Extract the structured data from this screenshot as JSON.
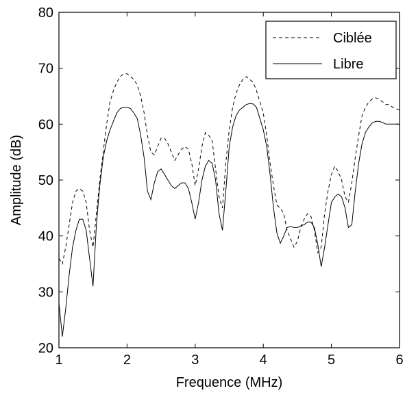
{
  "chart_data": {
    "type": "line",
    "title": "",
    "xlabel": "Frequence (MHz)",
    "ylabel": "Amplitude (dB)",
    "xlim": [
      1,
      6
    ],
    "ylim": [
      20,
      80
    ],
    "xticks": [
      1,
      2,
      3,
      4,
      5,
      6
    ],
    "yticks": [
      20,
      30,
      40,
      50,
      60,
      70,
      80
    ],
    "grid": false,
    "legend_position": "top-right",
    "series": [
      {
        "name": "Ciblée",
        "style": "dashed",
        "color": "#000000",
        "x": [
          1.0,
          1.05,
          1.1,
          1.15,
          1.2,
          1.25,
          1.3,
          1.35,
          1.4,
          1.45,
          1.5,
          1.55,
          1.6,
          1.65,
          1.7,
          1.75,
          1.8,
          1.85,
          1.9,
          1.95,
          2.0,
          2.05,
          2.1,
          2.15,
          2.2,
          2.25,
          2.3,
          2.35,
          2.4,
          2.45,
          2.5,
          2.55,
          2.6,
          2.65,
          2.7,
          2.75,
          2.8,
          2.85,
          2.9,
          2.95,
          3.0,
          3.05,
          3.1,
          3.15,
          3.2,
          3.25,
          3.3,
          3.35,
          3.4,
          3.45,
          3.5,
          3.55,
          3.6,
          3.65,
          3.7,
          3.75,
          3.8,
          3.85,
          3.9,
          3.95,
          4.0,
          4.05,
          4.1,
          4.15,
          4.2,
          4.25,
          4.3,
          4.35,
          4.4,
          4.45,
          4.5,
          4.55,
          4.6,
          4.65,
          4.7,
          4.75,
          4.8,
          4.85,
          4.9,
          4.95,
          5.0,
          5.05,
          5.1,
          5.15,
          5.2,
          5.25,
          5.3,
          5.35,
          5.4,
          5.45,
          5.5,
          5.55,
          5.6,
          5.65,
          5.7,
          5.75,
          5.8,
          5.85,
          5.9,
          5.95,
          6.0
        ],
        "y": [
          36.0,
          35.0,
          38.0,
          42.0,
          46.0,
          48.0,
          48.5,
          48.0,
          46.0,
          41.0,
          38.0,
          44.0,
          50.0,
          55.0,
          60.0,
          64.0,
          66.0,
          67.5,
          68.5,
          69.0,
          69.0,
          68.5,
          68.0,
          67.0,
          65.0,
          62.0,
          58.0,
          55.0,
          54.5,
          56.0,
          57.5,
          57.5,
          56.5,
          55.0,
          53.5,
          54.5,
          55.5,
          56.0,
          55.5,
          53.0,
          49.0,
          52.0,
          56.0,
          58.5,
          58.0,
          57.0,
          52.0,
          47.0,
          45.0,
          53.0,
          59.0,
          63.0,
          65.5,
          67.0,
          68.0,
          68.5,
          68.0,
          67.5,
          66.0,
          64.0,
          62.0,
          58.0,
          53.0,
          49.0,
          45.5,
          45.0,
          44.0,
          41.0,
          39.5,
          38.0,
          39.0,
          41.5,
          43.0,
          44.0,
          43.5,
          41.0,
          37.0,
          38.0,
          44.0,
          48.0,
          51.0,
          52.5,
          51.5,
          50.0,
          47.0,
          46.0,
          49.5,
          54.0,
          58.0,
          61.5,
          63.0,
          64.0,
          64.5,
          64.7,
          64.5,
          64.0,
          63.5,
          63.5,
          63.0,
          62.8,
          62.5
        ]
      },
      {
        "name": "Libre",
        "style": "solid",
        "color": "#000000",
        "x": [
          1.0,
          1.05,
          1.1,
          1.15,
          1.2,
          1.25,
          1.3,
          1.35,
          1.4,
          1.45,
          1.5,
          1.55,
          1.6,
          1.65,
          1.7,
          1.75,
          1.8,
          1.85,
          1.9,
          1.95,
          2.0,
          2.05,
          2.1,
          2.15,
          2.2,
          2.25,
          2.3,
          2.35,
          2.4,
          2.45,
          2.5,
          2.55,
          2.6,
          2.65,
          2.7,
          2.75,
          2.8,
          2.85,
          2.9,
          2.95,
          3.0,
          3.05,
          3.1,
          3.15,
          3.2,
          3.25,
          3.3,
          3.35,
          3.4,
          3.45,
          3.5,
          3.55,
          3.6,
          3.65,
          3.7,
          3.75,
          3.8,
          3.85,
          3.9,
          3.95,
          4.0,
          4.05,
          4.1,
          4.15,
          4.2,
          4.25,
          4.3,
          4.35,
          4.4,
          4.45,
          4.5,
          4.55,
          4.6,
          4.65,
          4.7,
          4.75,
          4.8,
          4.85,
          4.9,
          4.95,
          5.0,
          5.05,
          5.1,
          5.15,
          5.2,
          5.25,
          5.3,
          5.35,
          5.4,
          5.45,
          5.5,
          5.55,
          5.6,
          5.65,
          5.7,
          5.75,
          5.8,
          5.85,
          5.9,
          5.95,
          6.0
        ],
        "y": [
          28.0,
          22.0,
          27.0,
          33.0,
          38.0,
          41.0,
          43.0,
          43.0,
          41.0,
          36.0,
          31.0,
          42.0,
          49.0,
          54.0,
          57.0,
          59.0,
          60.5,
          62.0,
          62.8,
          63.0,
          63.0,
          62.8,
          62.0,
          61.0,
          58.0,
          54.0,
          48.0,
          46.5,
          49.5,
          51.5,
          52.0,
          51.0,
          50.0,
          49.0,
          48.5,
          49.0,
          49.5,
          49.5,
          48.5,
          46.0,
          43.0,
          46.0,
          50.0,
          52.5,
          53.5,
          53.0,
          50.0,
          44.0,
          41.0,
          48.0,
          56.0,
          59.5,
          61.5,
          62.5,
          63.0,
          63.5,
          63.7,
          63.6,
          63.0,
          61.0,
          59.0,
          56.0,
          51.0,
          45.0,
          40.5,
          38.7,
          40.0,
          41.5,
          41.7,
          41.5,
          41.5,
          41.8,
          42.0,
          42.5,
          42.5,
          41.5,
          38.5,
          34.5,
          38.0,
          42.0,
          46.0,
          47.0,
          47.5,
          47.0,
          45.0,
          41.5,
          42.0,
          48.0,
          53.0,
          56.5,
          58.5,
          59.5,
          60.2,
          60.5,
          60.5,
          60.3,
          60.0,
          60.0,
          60.0,
          60.0,
          60.0
        ]
      }
    ]
  }
}
